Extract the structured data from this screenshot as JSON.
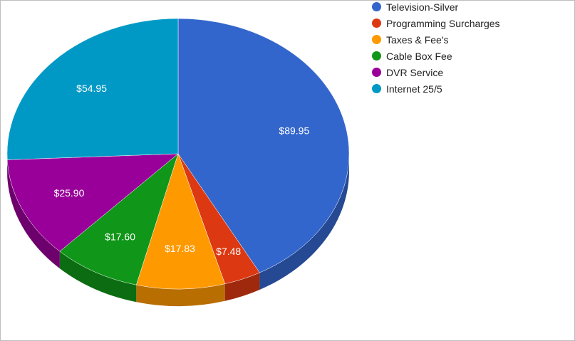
{
  "chart_data": {
    "type": "pie",
    "title": "",
    "three_d": true,
    "legend_position": "top-right",
    "categories": [
      "Television-Silver",
      "Programming Surcharges",
      "Taxes & Fee's",
      "Cable Box Fee",
      "DVR Service",
      "Internet 25/5"
    ],
    "values": [
      89.95,
      7.48,
      17.83,
      17.6,
      25.9,
      54.95
    ],
    "labels": [
      "$89.95",
      "$7.48",
      "$17.83",
      "$17.60",
      "$25.90",
      "$54.95"
    ],
    "colors": [
      "#3366cc",
      "#dc3912",
      "#ff9900",
      "#109618",
      "#990099",
      "#0099c6"
    ]
  }
}
